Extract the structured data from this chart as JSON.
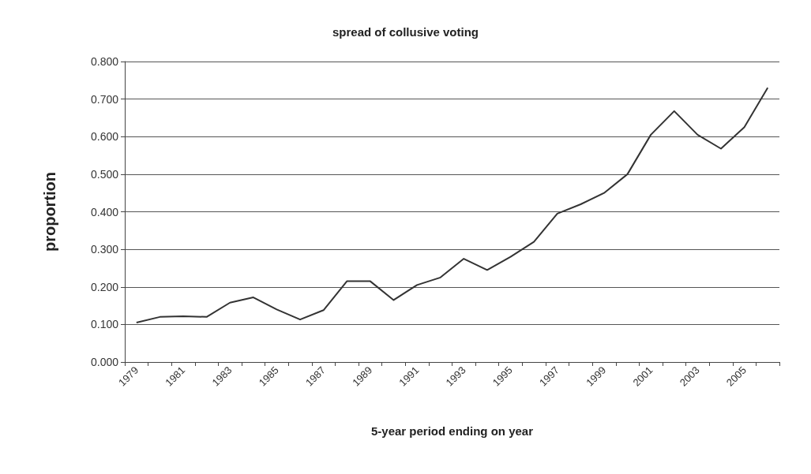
{
  "chart_data": {
    "type": "line",
    "title": "spread of collusive voting",
    "xlabel": "5-year period ending on year",
    "ylabel": "proportion",
    "categories": [
      "1979",
      null,
      "1981",
      null,
      "1983",
      null,
      "1985",
      null,
      "1987",
      null,
      "1989",
      null,
      "1991",
      null,
      "1993",
      null,
      "1995",
      null,
      "1997",
      null,
      "1999",
      null,
      "2001",
      null,
      "2003",
      null,
      "2005",
      null
    ],
    "series": [
      {
        "color": "#333333",
        "values": [
          0.105,
          0.12,
          0.122,
          0.12,
          0.158,
          0.172,
          0.14,
          0.113,
          0.138,
          0.215,
          0.215,
          0.165,
          0.205,
          0.225,
          0.275,
          0.245,
          0.28,
          0.32,
          0.395,
          0.42,
          0.45,
          0.5,
          0.605,
          0.668,
          0.605,
          0.568,
          0.625,
          0.73
        ]
      }
    ],
    "ylim": [
      0,
      0.8
    ],
    "yticks": [
      {
        "value": 0,
        "label": "0.000"
      },
      {
        "value": 0.1,
        "label": "0.100"
      },
      {
        "value": 0.2,
        "label": "0.200"
      },
      {
        "value": 0.3,
        "label": "0.300"
      },
      {
        "value": 0.4,
        "label": "0.400"
      },
      {
        "value": 0.5,
        "label": "0.500"
      },
      {
        "value": 0.6,
        "label": "0.600"
      },
      {
        "value": 0.7,
        "label": "0.700"
      },
      {
        "value": 0.8,
        "label": "0.800"
      }
    ],
    "grid": "y",
    "marker": "none",
    "line_style": "solid"
  }
}
